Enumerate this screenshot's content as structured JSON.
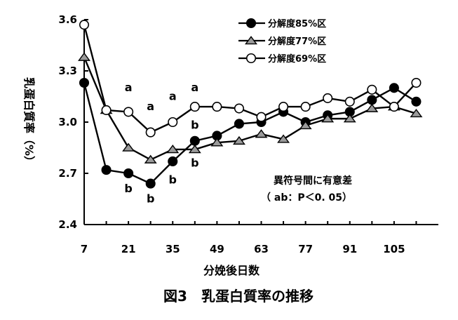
{
  "chart_data": {
    "type": "line",
    "title": "",
    "caption": "図3　乳蛋白質率の推移",
    "xlabel": "分娩後日数",
    "ylabel": "乳蛋白質率（%）",
    "x_ticks": [
      7,
      21,
      35,
      49,
      63,
      77,
      91,
      105
    ],
    "y_ticks": [
      "2.4",
      "2.7",
      "3.0",
      "3.3",
      "3.6"
    ],
    "xlim": [
      7,
      119
    ],
    "ylim": [
      2.4,
      3.6
    ],
    "grid": false,
    "legend_position": "top-right",
    "x": [
      7,
      14,
      21,
      28,
      35,
      42,
      49,
      56,
      63,
      70,
      77,
      84,
      91,
      98,
      105,
      112
    ],
    "series": [
      {
        "name": "分解度85%区",
        "marker": "filled-circle",
        "color": "#000000",
        "values": [
          3.23,
          2.72,
          2.7,
          2.64,
          2.77,
          2.89,
          2.92,
          2.99,
          3.0,
          3.06,
          3.0,
          3.04,
          3.06,
          3.13,
          3.2,
          3.12
        ]
      },
      {
        "name": "分解度77%区",
        "marker": "gray-triangle",
        "color": "#9a9a9a",
        "values": [
          3.38,
          3.07,
          2.85,
          2.78,
          2.84,
          2.84,
          2.88,
          2.89,
          2.93,
          2.9,
          2.98,
          3.02,
          3.02,
          3.08,
          3.09,
          3.05
        ]
      },
      {
        "name": "分解度69%区",
        "marker": "open-circle",
        "color": "#ffffff",
        "values": [
          3.57,
          3.07,
          3.06,
          2.94,
          3.0,
          3.09,
          3.09,
          3.08,
          3.03,
          3.09,
          3.09,
          3.14,
          3.12,
          3.19,
          3.09,
          3.23
        ]
      }
    ],
    "annotations": [
      {
        "text": "a",
        "x": 21,
        "y": 3.18
      },
      {
        "text": "a",
        "x": 28,
        "y": 3.07
      },
      {
        "text": "a",
        "x": 35,
        "y": 3.13
      },
      {
        "text": "a",
        "x": 42,
        "y": 3.18
      },
      {
        "text": "b",
        "x": 42,
        "y": 2.96
      },
      {
        "text": "b",
        "x": 42,
        "y": 2.74
      },
      {
        "text": "b",
        "x": 35,
        "y": 2.64
      },
      {
        "text": "b",
        "x": 21,
        "y": 2.59
      },
      {
        "text": "b",
        "x": 28,
        "y": 2.53
      }
    ],
    "note_lines": [
      "異符号間に有意差",
      "（ ab：P＜0. 05）"
    ]
  }
}
